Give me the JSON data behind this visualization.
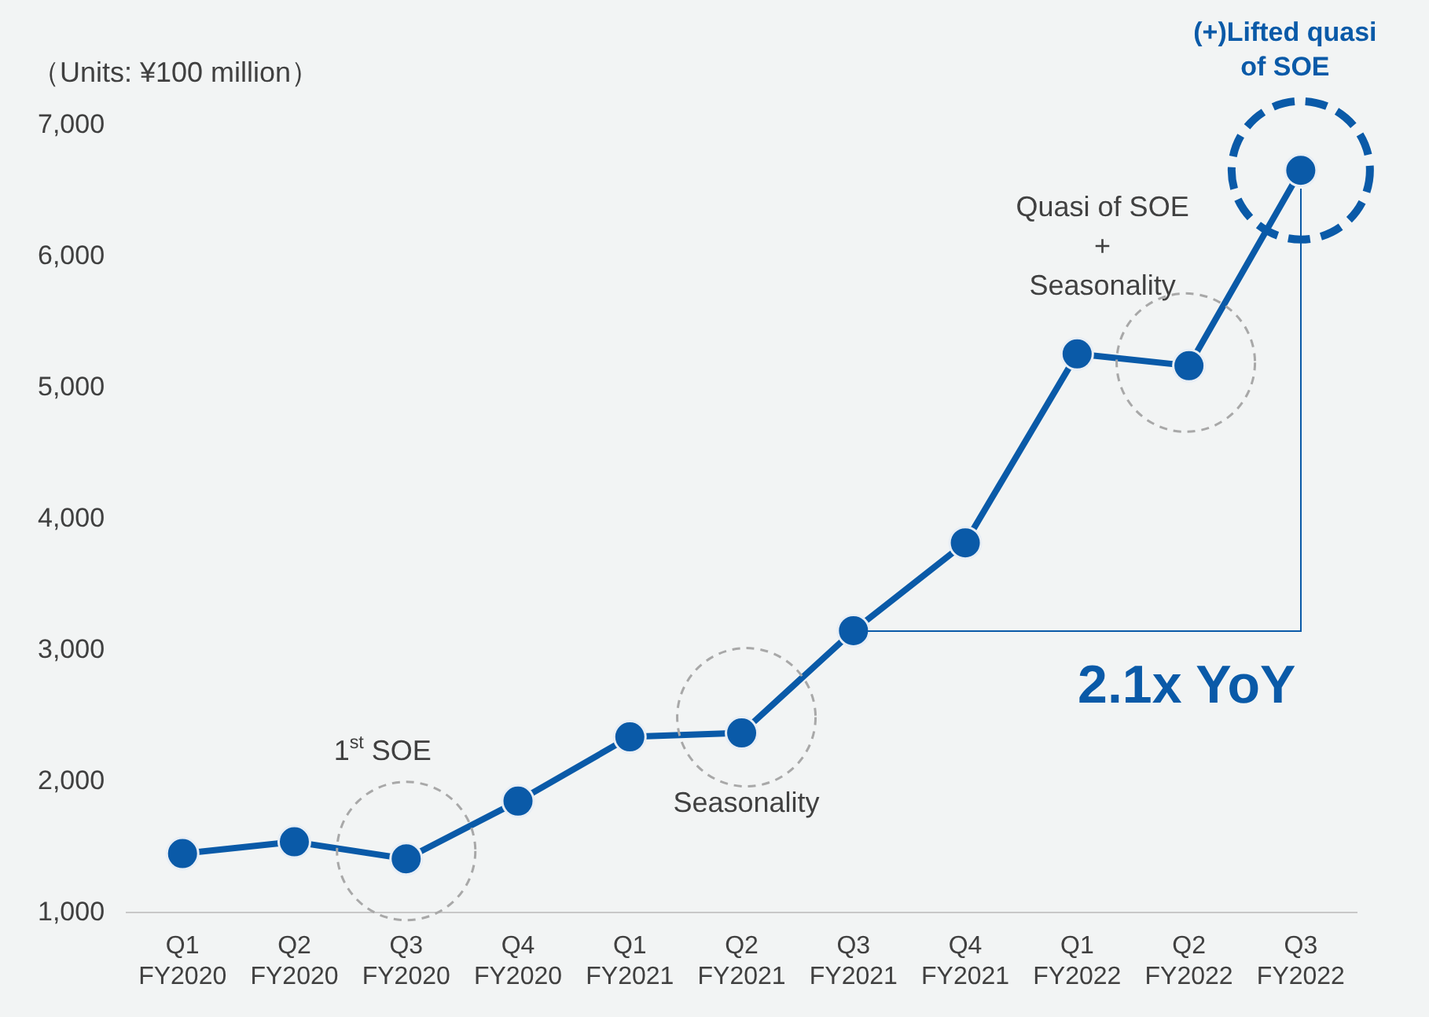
{
  "chart_data": {
    "type": "line",
    "categories": [
      "Q1\nFY2020",
      "Q2\nFY2020",
      "Q3\nFY2020",
      "Q4\nFY2020",
      "Q1\nFY2021",
      "Q2\nFY2021",
      "Q3\nFY2021",
      "Q4\nFY2021",
      "Q1\nFY2022",
      "Q2\nFY2022",
      "Q3\nFY2022"
    ],
    "series": [
      {
        "color": "#0a5aa8",
        "values": [
          1450,
          1540,
          1410,
          1850,
          2340,
          2370,
          3150,
          3820,
          5260,
          5170,
          6660
        ]
      }
    ],
    "ylim": [
      1000,
      7000
    ],
    "yticks": [
      {
        "value": 1000,
        "label": "1,000"
      },
      {
        "value": 2000,
        "label": "2,000"
      },
      {
        "value": 3000,
        "label": "3,000"
      },
      {
        "value": 4000,
        "label": "4,000"
      },
      {
        "value": 5000,
        "label": "5,000"
      },
      {
        "value": 6000,
        "label": "6,000"
      },
      {
        "value": 7000,
        "label": "7,000"
      }
    ],
    "grid": false,
    "legend": false,
    "marker": "circle",
    "line_style": "solid",
    "annotations": [
      "（Units: ¥100 million）",
      "1$^{st}$ SOE",
      {
        "text": "Seasonality",
        "x": "Q2\nFY2021",
        "y": 2370
      },
      {
        "text": "Quasi of SOE\n+\nSeasonality",
        "x": "Q2\nFY2022",
        "y": 5170
      },
      "(+)Lifted quasi\nof SOE",
      {
        "text": "2.1x YoY",
        "x": "Q3\nFY2021",
        "y": 3150
      }
    ]
  }
}
